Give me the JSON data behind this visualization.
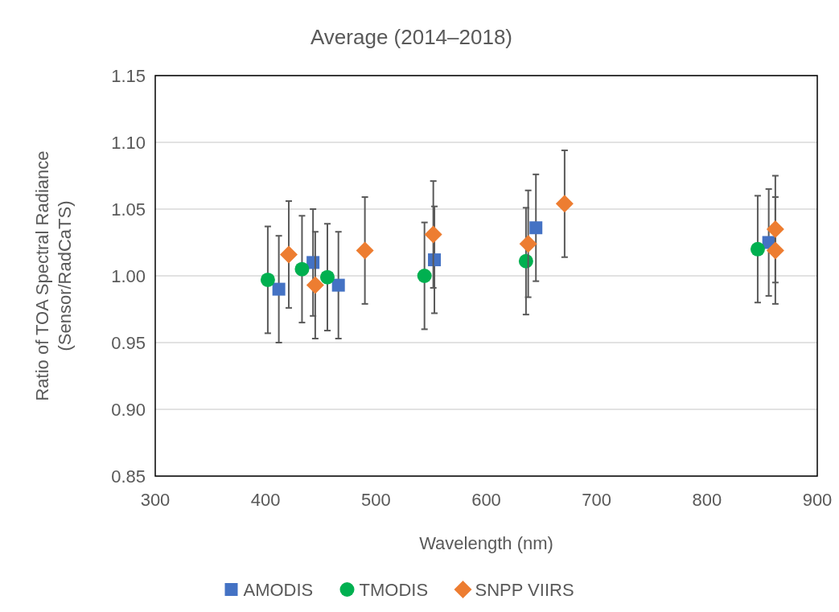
{
  "chart_data": {
    "type": "scatter",
    "title": "Average (2014–2018)",
    "xlabel": "Wavelength (nm)",
    "ylabel": "Ratio of TOA Spectral Radiance (Sensor/RadCaTS)",
    "xlim": [
      300,
      900
    ],
    "xticks": [
      300,
      400,
      500,
      600,
      700,
      800,
      900
    ],
    "ylim": [
      0.85,
      1.15
    ],
    "yticks": [
      {
        "value": 0.85,
        "label": "0.85"
      },
      {
        "value": 0.9,
        "label": "0.90"
      },
      {
        "value": 0.95,
        "label": "0.95"
      },
      {
        "value": 1.0,
        "label": "1.00"
      },
      {
        "value": 1.05,
        "label": "1.05"
      },
      {
        "value": 1.1,
        "label": "1.10"
      },
      {
        "value": 1.15,
        "label": "1.15"
      }
    ],
    "grid": "y",
    "legend": "bottom",
    "series": [
      {
        "name": "AMODIS",
        "color": "#4472c4",
        "marker": "square",
        "x": [
          412,
          443,
          466,
          553,
          645,
          856
        ],
        "values": [
          0.99,
          1.01,
          0.993,
          1.012,
          1.036,
          1.025
        ],
        "errors": [
          0.04,
          0.04,
          0.04,
          0.04,
          0.04,
          0.04
        ]
      },
      {
        "name": "TMODIS",
        "color": "#00b050",
        "marker": "circle",
        "x": [
          402,
          433,
          456,
          544,
          636,
          846
        ],
        "values": [
          0.997,
          1.005,
          0.999,
          1.0,
          1.011,
          1.02
        ],
        "errors": [
          0.04,
          0.04,
          0.04,
          0.04,
          0.04,
          0.04
        ]
      },
      {
        "name": "SNPP VIIRS",
        "color": "#ed7d31",
        "marker": "diamond",
        "x": [
          421,
          445,
          490,
          552,
          638,
          671,
          862,
          862
        ],
        "values": [
          1.016,
          0.993,
          1.019,
          1.031,
          1.024,
          1.054,
          1.035,
          1.019
        ],
        "errors": [
          0.04,
          0.04,
          0.04,
          0.04,
          0.04,
          0.04,
          0.04,
          0.04
        ]
      }
    ]
  }
}
